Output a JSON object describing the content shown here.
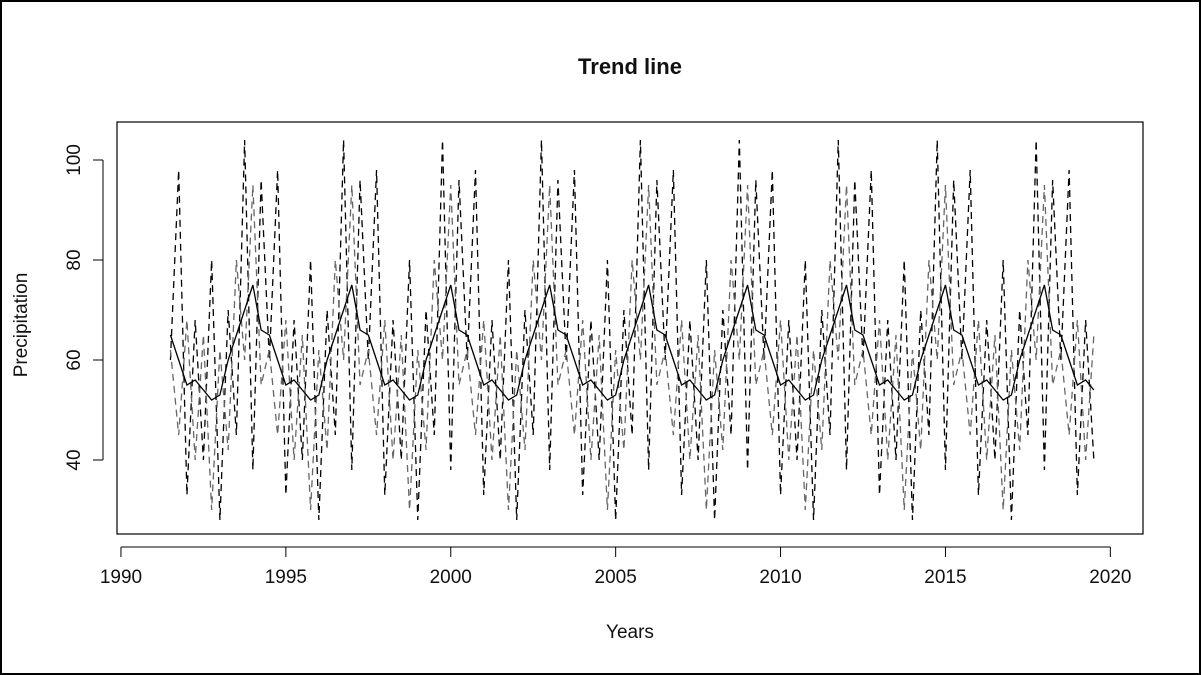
{
  "chart_data": {
    "type": "line",
    "title": "Trend line",
    "x_label": "Years",
    "y_label": "Precipitation",
    "x": [
      1991.5,
      1991.75,
      1992,
      1992.25,
      1992.5,
      1992.75,
      1993,
      1993.25,
      1993.5,
      1993.75,
      1994,
      1994.25,
      1994.5,
      1994.75,
      1995,
      1995.25,
      1995.5,
      1995.75,
      1996,
      1996.25,
      1996.5,
      1996.75,
      1997,
      1997.25,
      1997.5,
      1997.75,
      1998,
      1998.25,
      1998.5,
      1998.75,
      1999,
      1999.25,
      1999.5,
      1999.75,
      2000,
      2000.25,
      2000.5,
      2000.75,
      2001,
      2001.25,
      2001.5,
      2001.75,
      2002,
      2002.25,
      2002.5,
      2002.75,
      2003,
      2003.25,
      2003.5,
      2003.75,
      2004,
      2004.25,
      2004.5,
      2004.75,
      2005,
      2005.25,
      2005.5,
      2005.75,
      2006,
      2006.25,
      2006.5,
      2006.75,
      2007,
      2007.25,
      2007.5,
      2007.75,
      2008,
      2008.25,
      2008.5,
      2008.75,
      2009,
      2009.25,
      2009.5,
      2009.75,
      2010,
      2010.25,
      2010.5,
      2010.75,
      2011,
      2011.25,
      2011.5,
      2011.75,
      2012,
      2012.25,
      2012.5,
      2012.75,
      2013,
      2013.25,
      2013.5,
      2013.75,
      2014,
      2014.25,
      2014.5,
      2014.75,
      2015,
      2015.25,
      2015.5,
      2015.75,
      2016,
      2016.25,
      2016.5,
      2016.75,
      2017,
      2017.25,
      2017.5,
      2017.75,
      2018,
      2018.25,
      2018.5,
      2018.75,
      2019,
      2019.25,
      2019.5
    ],
    "series": [
      {
        "color": "#000000",
        "dash": "dashed",
        "values": [
          60,
          98,
          33,
          68,
          40,
          80,
          28,
          70,
          45,
          104,
          38,
          96,
          60,
          98,
          33,
          68,
          40,
          80,
          28,
          70,
          45,
          104,
          38,
          96,
          60,
          98,
          33,
          68,
          40,
          80,
          28,
          70,
          45,
          104,
          38,
          96,
          60,
          98,
          33,
          68,
          40,
          80,
          28,
          70,
          45,
          104,
          38,
          96,
          60,
          98,
          33,
          68,
          40,
          80,
          28,
          70,
          45,
          104,
          38,
          96,
          60,
          98,
          33,
          68,
          40,
          80,
          28,
          70,
          45,
          104,
          38,
          96,
          60,
          98,
          33,
          68,
          40,
          80,
          28,
          70,
          45,
          104,
          38,
          96,
          60,
          98,
          33,
          68,
          40,
          80,
          28,
          70,
          45,
          104,
          38,
          96,
          60,
          98,
          33,
          68,
          40,
          80,
          28,
          70,
          45,
          104,
          38,
          96,
          60,
          98,
          33,
          68,
          40
        ]
      },
      {
        "color": "#666666",
        "dash": "dashed",
        "values": [
          62,
          45,
          68,
          40,
          65,
          30,
          62,
          42,
          80,
          60,
          95,
          55,
          62,
          45,
          68,
          40,
          65,
          30,
          62,
          42,
          80,
          60,
          95,
          55,
          62,
          45,
          68,
          40,
          65,
          30,
          62,
          42,
          80,
          60,
          95,
          55,
          62,
          45,
          68,
          40,
          65,
          30,
          62,
          42,
          80,
          60,
          95,
          55,
          62,
          45,
          68,
          40,
          65,
          30,
          62,
          42,
          80,
          60,
          95,
          55,
          62,
          45,
          68,
          40,
          65,
          30,
          62,
          42,
          80,
          60,
          95,
          55,
          62,
          45,
          68,
          40,
          65,
          30,
          62,
          42,
          80,
          60,
          95,
          55,
          62,
          45,
          68,
          40,
          65,
          30,
          62,
          42,
          80,
          60,
          95,
          55,
          62,
          45,
          68,
          40,
          65,
          30,
          62,
          42,
          80,
          60,
          95,
          55,
          62,
          45,
          68,
          40,
          65
        ]
      },
      {
        "color": "#000000",
        "dash": "solid",
        "values": [
          65,
          60,
          55,
          56,
          54,
          52,
          53,
          60,
          65,
          70,
          75,
          66,
          65,
          60,
          55,
          56,
          54,
          52,
          53,
          60,
          65,
          70,
          75,
          66,
          65,
          60,
          55,
          56,
          54,
          52,
          53,
          60,
          65,
          70,
          75,
          66,
          65,
          60,
          55,
          56,
          54,
          52,
          53,
          60,
          65,
          70,
          75,
          66,
          65,
          60,
          55,
          56,
          54,
          52,
          53,
          60,
          65,
          70,
          75,
          66,
          65,
          60,
          55,
          56,
          54,
          52,
          53,
          60,
          65,
          70,
          75,
          66,
          65,
          60,
          55,
          56,
          54,
          52,
          53,
          60,
          65,
          70,
          75,
          66,
          65,
          60,
          55,
          56,
          54,
          52,
          53,
          60,
          65,
          70,
          75,
          66,
          65,
          60,
          55,
          56,
          54,
          52,
          53,
          60,
          65,
          70,
          75,
          66,
          65,
          60,
          55,
          56,
          54
        ]
      }
    ],
    "xlim": [
      1989.88,
      2020.99
    ],
    "xticks": [
      1990,
      1995,
      2000,
      2005,
      2010,
      2015,
      2020
    ],
    "ylim": [
      25.2,
      107.6
    ],
    "yticks": [
      40,
      60,
      80,
      100
    ]
  }
}
